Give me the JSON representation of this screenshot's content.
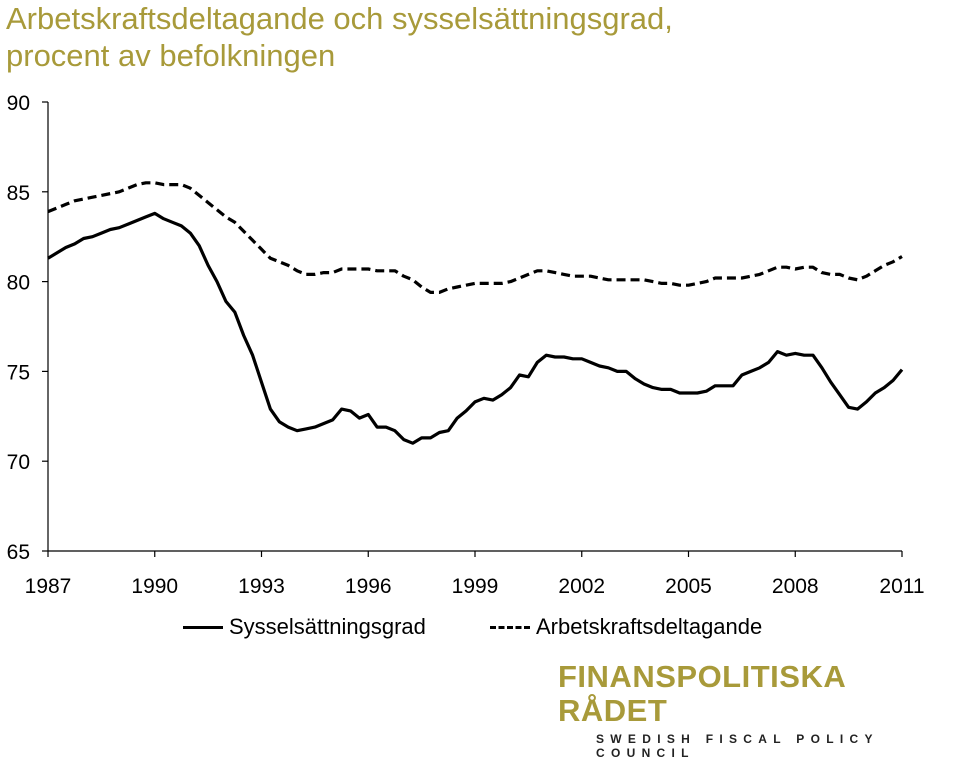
{
  "title_line1": "Arbetskraftsdeltagande och sysselsättningsgrad,",
  "title_line2": "procent av befolkningen",
  "brand_name": "FINANSPOLITISKA RÅDET",
  "brand_sub": "SWEDISH FISCAL POLICY COUNCIL",
  "chart_data": {
    "type": "line",
    "title": "Arbetskraftsdeltagande och sysselsättningsgrad, procent av befolkningen",
    "xlabel": "",
    "ylabel": "",
    "xlim": [
      1987,
      2011
    ],
    "ylim": [
      65,
      90
    ],
    "x_ticks": [
      "1987",
      "1990",
      "1993",
      "1996",
      "1999",
      "2002",
      "2005",
      "2008",
      "2011"
    ],
    "y_ticks": [
      "65",
      "70",
      "75",
      "80",
      "85",
      "90"
    ],
    "grid": false,
    "legend_position": "bottom",
    "series": [
      {
        "name": "Sysselsättningsgrad",
        "style": "solid",
        "color": "#000000",
        "x": [
          1987.0,
          1987.25,
          1987.5,
          1987.75,
          1988.0,
          1988.25,
          1988.5,
          1988.75,
          1989.0,
          1989.25,
          1989.5,
          1989.75,
          1990.0,
          1990.25,
          1990.5,
          1990.75,
          1991.0,
          1991.25,
          1991.5,
          1991.75,
          1992.0,
          1992.25,
          1992.5,
          1992.75,
          1993.0,
          1993.25,
          1993.5,
          1993.75,
          1994.0,
          1994.25,
          1994.5,
          1994.75,
          1995.0,
          1995.25,
          1995.5,
          1995.75,
          1996.0,
          1996.25,
          1996.5,
          1996.75,
          1997.0,
          1997.25,
          1997.5,
          1997.75,
          1998.0,
          1998.25,
          1998.5,
          1998.75,
          1999.0,
          1999.25,
          1999.5,
          1999.75,
          2000.0,
          2000.25,
          2000.5,
          2000.75,
          2001.0,
          2001.25,
          2001.5,
          2001.75,
          2002.0,
          2002.25,
          2002.5,
          2002.75,
          2003.0,
          2003.25,
          2003.5,
          2003.75,
          2004.0,
          2004.25,
          2004.5,
          2004.75,
          2005.0,
          2005.25,
          2005.5,
          2005.75,
          2006.0,
          2006.25,
          2006.5,
          2006.75,
          2007.0,
          2007.25,
          2007.5,
          2007.75,
          2008.0,
          2008.25,
          2008.5,
          2008.75,
          2009.0,
          2009.25,
          2009.5,
          2009.75,
          2010.0,
          2010.25,
          2010.5,
          2010.75,
          2011.0
        ],
        "values": [
          81.3,
          81.6,
          81.9,
          82.1,
          82.4,
          82.5,
          82.7,
          82.9,
          83.0,
          83.2,
          83.4,
          83.6,
          83.8,
          83.5,
          83.3,
          83.1,
          82.7,
          82.0,
          80.9,
          80.0,
          78.9,
          78.3,
          77.0,
          75.9,
          74.4,
          72.9,
          72.2,
          71.9,
          71.7,
          71.8,
          71.9,
          72.1,
          72.3,
          72.9,
          72.8,
          72.4,
          72.6,
          71.9,
          71.9,
          71.7,
          71.2,
          71.0,
          71.3,
          71.3,
          71.6,
          71.7,
          72.4,
          72.8,
          73.3,
          73.5,
          73.4,
          73.7,
          74.1,
          74.8,
          74.7,
          75.5,
          75.9,
          75.8,
          75.8,
          75.7,
          75.7,
          75.5,
          75.3,
          75.2,
          75.0,
          75.0,
          74.6,
          74.3,
          74.1,
          74.0,
          74.0,
          73.8,
          73.8,
          73.8,
          73.9,
          74.2,
          74.2,
          74.2,
          74.8,
          75.0,
          75.2,
          75.5,
          76.1,
          75.9,
          76.0,
          75.9,
          75.9,
          75.2,
          74.4,
          73.7,
          73.0,
          72.9,
          73.3,
          73.8,
          74.1,
          74.5,
          75.1
        ]
      },
      {
        "name": "Arbetskraftsdeltagande",
        "style": "dashed",
        "color": "#000000",
        "x": [
          1987.0,
          1987.25,
          1987.5,
          1987.75,
          1988.0,
          1988.25,
          1988.5,
          1988.75,
          1989.0,
          1989.25,
          1989.5,
          1989.75,
          1990.0,
          1990.25,
          1990.5,
          1990.75,
          1991.0,
          1991.25,
          1991.5,
          1991.75,
          1992.0,
          1992.25,
          1992.5,
          1992.75,
          1993.0,
          1993.25,
          1993.5,
          1993.75,
          1994.0,
          1994.25,
          1994.5,
          1994.75,
          1995.0,
          1995.25,
          1995.5,
          1995.75,
          1996.0,
          1996.25,
          1996.5,
          1996.75,
          1997.0,
          1997.25,
          1997.5,
          1997.75,
          1998.0,
          1998.25,
          1998.5,
          1998.75,
          1999.0,
          1999.25,
          1999.5,
          1999.75,
          2000.0,
          2000.25,
          2000.5,
          2000.75,
          2001.0,
          2001.25,
          2001.5,
          2001.75,
          2002.0,
          2002.25,
          2002.5,
          2002.75,
          2003.0,
          2003.25,
          2003.5,
          2003.75,
          2004.0,
          2004.25,
          2004.5,
          2004.75,
          2005.0,
          2005.25,
          2005.5,
          2005.75,
          2006.0,
          2006.25,
          2006.5,
          2006.75,
          2007.0,
          2007.25,
          2007.5,
          2007.75,
          2008.0,
          2008.25,
          2008.5,
          2008.75,
          2009.0,
          2009.25,
          2009.5,
          2009.75,
          2010.0,
          2010.25,
          2010.5,
          2010.75,
          2011.0
        ],
        "values": [
          83.9,
          84.1,
          84.3,
          84.5,
          84.6,
          84.7,
          84.8,
          84.9,
          85.0,
          85.2,
          85.4,
          85.5,
          85.5,
          85.4,
          85.4,
          85.4,
          85.2,
          84.8,
          84.4,
          84.0,
          83.6,
          83.3,
          82.8,
          82.3,
          81.8,
          81.3,
          81.1,
          80.9,
          80.6,
          80.4,
          80.4,
          80.5,
          80.5,
          80.7,
          80.7,
          80.7,
          80.7,
          80.6,
          80.6,
          80.6,
          80.3,
          80.1,
          79.7,
          79.4,
          79.4,
          79.6,
          79.7,
          79.8,
          79.9,
          79.9,
          79.9,
          79.9,
          80.0,
          80.2,
          80.4,
          80.6,
          80.6,
          80.5,
          80.4,
          80.3,
          80.3,
          80.3,
          80.2,
          80.1,
          80.1,
          80.1,
          80.1,
          80.1,
          80.0,
          79.9,
          79.9,
          79.8,
          79.8,
          79.9,
          80.0,
          80.2,
          80.2,
          80.2,
          80.2,
          80.3,
          80.4,
          80.6,
          80.8,
          80.8,
          80.7,
          80.8,
          80.8,
          80.5,
          80.4,
          80.4,
          80.2,
          80.1,
          80.3,
          80.6,
          80.9,
          81.1,
          81.4
        ]
      }
    ]
  }
}
